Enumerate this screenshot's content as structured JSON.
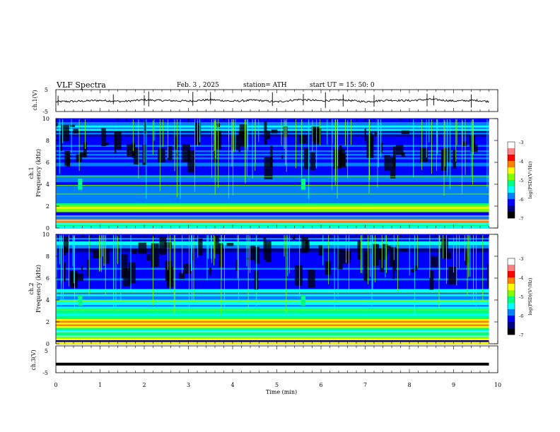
{
  "header": {
    "title": "VLF  Spectra",
    "date": "Feb. 3  , 2025",
    "station": "station= ATH",
    "start": "start  UT  =    15: 50: 0"
  },
  "colors": {
    "background": "#ffffff",
    "axis": "#000000",
    "colormap": [
      "#000000",
      "#00008f",
      "#0000ff",
      "#0080ff",
      "#00ffff",
      "#00ff80",
      "#80ff00",
      "#ffff00",
      "#ff8000",
      "#ff0000",
      "#ffffff"
    ]
  },
  "chart_data": [
    {
      "type": "line",
      "panel": "ch1-waveform",
      "ylabel": "ch.1(V)",
      "ylim": [
        -5,
        5
      ],
      "yticks": [
        "5",
        "-5"
      ],
      "xlim": [
        0,
        10
      ],
      "series": [
        {
          "x": [
            0,
            0.5,
            1,
            1.5,
            2,
            2.5,
            3,
            3.5,
            4,
            4.5,
            5,
            5.5,
            6,
            6.5,
            7,
            7.5,
            8,
            8.5,
            9,
            9.5,
            9.8
          ],
          "y": [
            -0.5,
            -0.3,
            0.1,
            -0.4,
            0.3,
            0.0,
            -0.2,
            0.4,
            -0.3,
            0.2,
            -0.6,
            0.5,
            -0.1,
            0.3,
            -0.5,
            0.2,
            0.0,
            0.6,
            -0.2,
            0.1,
            -0.4
          ]
        }
      ]
    },
    {
      "type": "heatmap",
      "panel": "ch1-spectrogram",
      "ylabel": "ch.1\nFrequency (kHz)",
      "ylim": [
        0,
        10
      ],
      "yticks": [
        "0",
        "2",
        "4",
        "6",
        "8",
        "10"
      ],
      "xlim": [
        0,
        10
      ],
      "colorbar": {
        "label": "log(PSD)(V²/Hz)",
        "range": [
          -7,
          -3
        ],
        "ticks": [
          "-3",
          "-4",
          "-5",
          "-6",
          "-7"
        ]
      }
    },
    {
      "type": "heatmap",
      "panel": "ch2-spectrogram",
      "ylabel": "ch.2\nFrequency (kHz)",
      "ylim": [
        0,
        10
      ],
      "yticks": [
        "0",
        "2",
        "4",
        "6",
        "8",
        "10"
      ],
      "xlim": [
        0,
        10
      ],
      "colorbar": {
        "label": "log(PSD)(V²/Hz)",
        "range": [
          -7,
          -3
        ],
        "ticks": [
          "-3",
          "-4",
          "-5",
          "-6",
          "-7"
        ]
      }
    },
    {
      "type": "line",
      "panel": "ch3-waveform",
      "ylabel": "ch.3(V)",
      "ylim": [
        -5,
        5
      ],
      "yticks": [
        "5",
        "0",
        "-5"
      ],
      "xlim": [
        0,
        10
      ],
      "xlabel": "Time  (min)",
      "xticks": [
        "0",
        "1",
        "2",
        "3",
        "4",
        "5",
        "6",
        "7",
        "8",
        "9",
        "10"
      ],
      "series": [
        {
          "x": [
            0,
            9.8
          ],
          "y": [
            -1.8,
            -1.8
          ]
        }
      ]
    }
  ]
}
